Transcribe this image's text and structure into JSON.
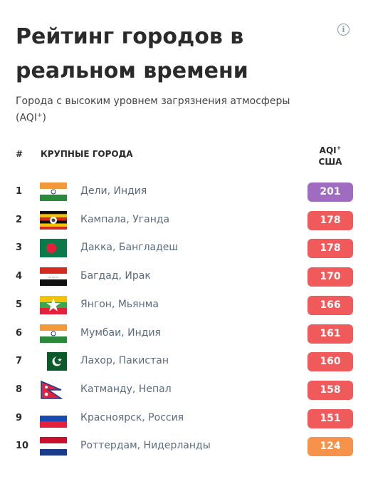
{
  "header": {
    "title": "Рейтинг городов в реальном времени",
    "subtitle_main": "Города с высоким уровнем загрязнения атмосферы (AQI",
    "subtitle_sup": "+",
    "subtitle_end": ")",
    "info_icon": "i"
  },
  "table": {
    "col_rank": "#",
    "col_city": "КРУПНЫЕ ГОРОДА",
    "col_aqi_line1": "AQI",
    "col_aqi_sup": "+",
    "col_aqi_line2": "США",
    "rows": [
      {
        "rank": "1",
        "city": "Дели, Индия",
        "aqi": "201",
        "flag": "india",
        "color": "#a06cc0"
      },
      {
        "rank": "2",
        "city": "Кампала, Уганда",
        "aqi": "178",
        "flag": "uganda",
        "color": "#f05a5a"
      },
      {
        "rank": "3",
        "city": "Дакка, Бангладеш",
        "aqi": "178",
        "flag": "bangladesh",
        "color": "#f05a5a"
      },
      {
        "rank": "4",
        "city": "Багдад, Ирак",
        "aqi": "170",
        "flag": "iraq",
        "color": "#f05a5a"
      },
      {
        "rank": "5",
        "city": "Янгон, Мьянма",
        "aqi": "166",
        "flag": "myanmar",
        "color": "#f05a5a"
      },
      {
        "rank": "6",
        "city": "Мумбаи, Индия",
        "aqi": "161",
        "flag": "india",
        "color": "#f05a5a"
      },
      {
        "rank": "7",
        "city": "Лахор, Пакистан",
        "aqi": "160",
        "flag": "pakistan",
        "color": "#f05a5a"
      },
      {
        "rank": "8",
        "city": "Катманду, Непал",
        "aqi": "158",
        "flag": "nepal",
        "color": "#f05a5a"
      },
      {
        "rank": "9",
        "city": "Красноярск, Россия",
        "aqi": "151",
        "flag": "russia",
        "color": "#f05a5a"
      },
      {
        "rank": "10",
        "city": "Роттердам, Нидерланды",
        "aqi": "124",
        "flag": "netherlands",
        "color": "#f7924a"
      }
    ]
  }
}
